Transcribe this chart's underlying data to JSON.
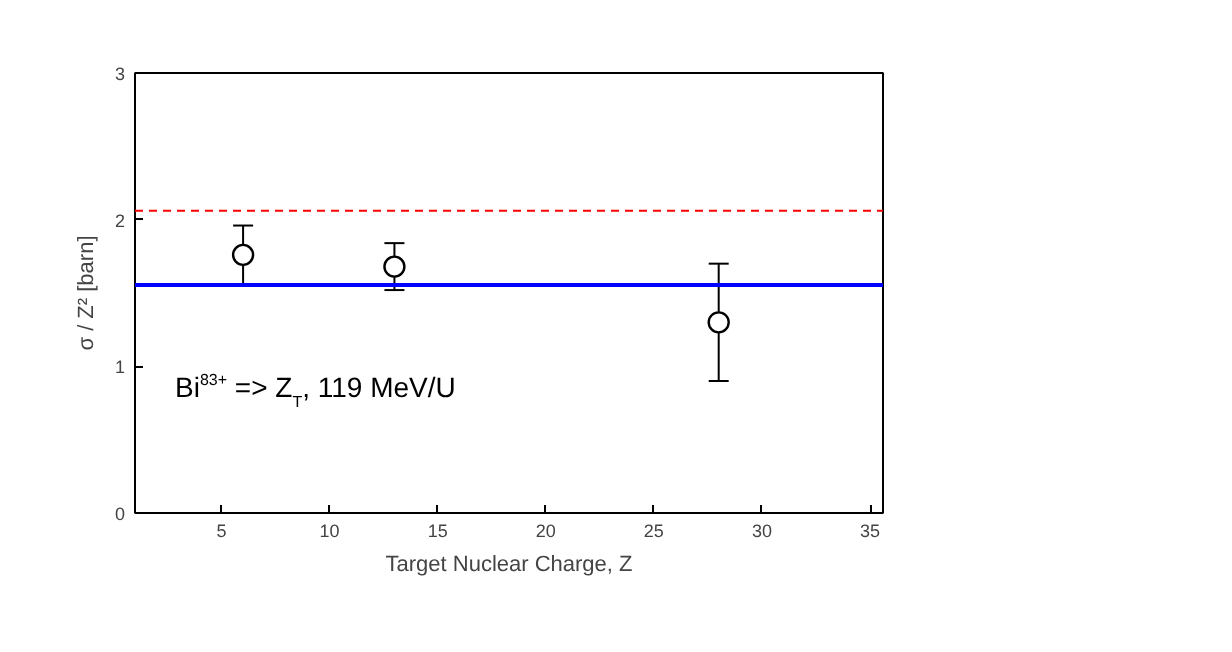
{
  "chart_data": {
    "type": "scatter",
    "xlabel": "Target Nuclear Charge, Z",
    "ylabel": "σ / Z² [barn]",
    "x": [
      6,
      13,
      28
    ],
    "series": [
      {
        "color": "#000000",
        "values": [
          1.76,
          1.68,
          1.3
        ],
        "errors": [
          0.2,
          0.16,
          0.4
        ]
      }
    ],
    "xlim": [
      1,
      35.6
    ],
    "ylim": [
      0,
      3
    ],
    "xticks": [
      5,
      10,
      15,
      20,
      25,
      30,
      35
    ],
    "yticks": [
      0,
      1,
      2,
      3
    ],
    "marker": "circle",
    "grid": false,
    "ref_lines": [
      {
        "axis": "y",
        "value": 2.06,
        "color": "#ff0000",
        "line_style": "dashed"
      },
      {
        "axis": "y",
        "value": 1.555,
        "color": "#0000ff",
        "line_style": "solid"
      }
    ],
    "annotations": [
      "Bi$^{83+}$ => Z$_{T}$, 119 MeV/U"
    ]
  }
}
